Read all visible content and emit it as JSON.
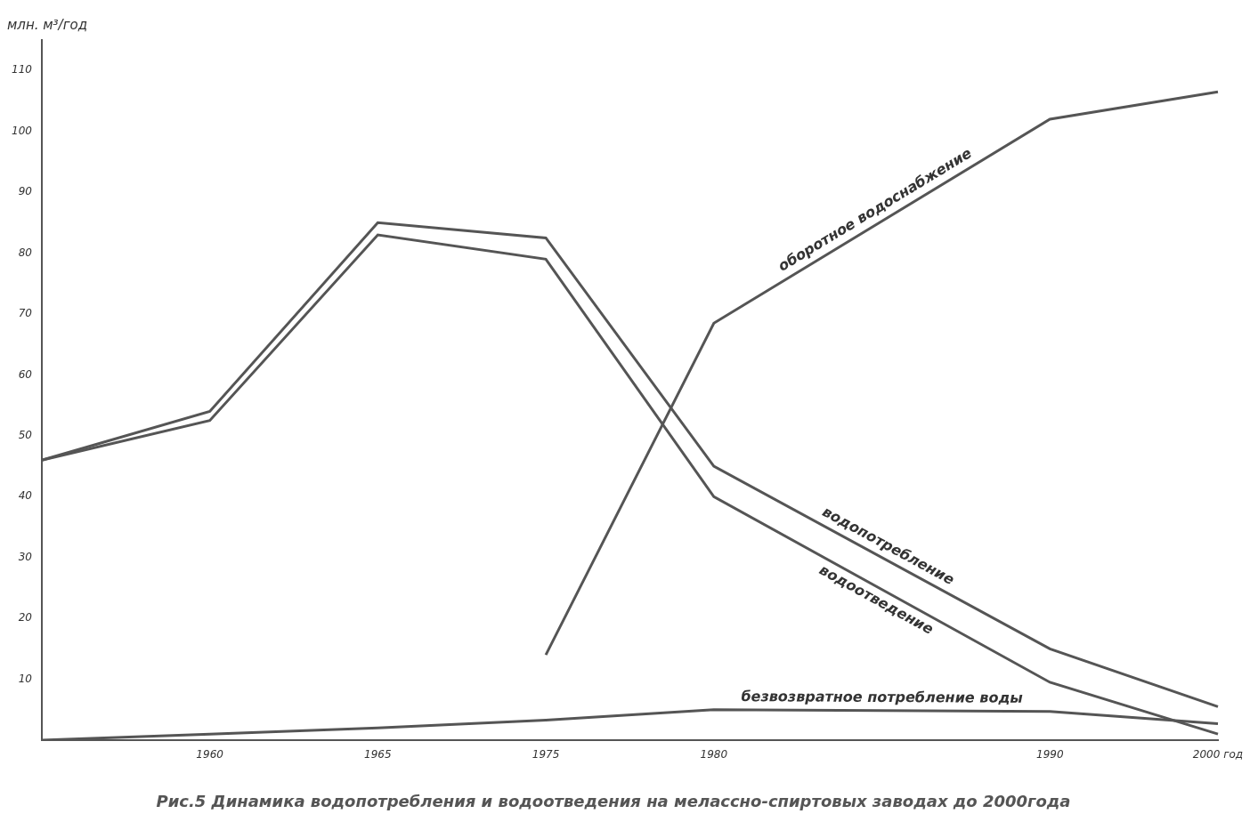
{
  "chart_data": {
    "type": "line",
    "title": "Рис.5 Динамика водопотребления и водоотведения на мелассно-спиртовых заводах до 2000года",
    "y_label": "млн. м³/год",
    "categories": [
      null,
      "1960",
      "1965",
      "1975",
      "1980",
      null,
      "1990",
      "2000 год"
    ],
    "series": [
      {
        "name": "водопотребление",
        "color": "#555555",
        "values": [
          46,
          54,
          85,
          82.5,
          45,
          null,
          15,
          5.5
        ]
      },
      {
        "name": "водоотведение",
        "color": "#555555",
        "values": [
          46,
          52.5,
          83,
          79,
          40,
          null,
          9.5,
          1
        ]
      },
      {
        "name": "оборотное водоснабжение",
        "color": "#555555",
        "values": [
          null,
          null,
          null,
          14,
          68.5,
          null,
          102,
          106.5
        ]
      },
      {
        "name": "безвозвратное потребление воды",
        "color": "#555555",
        "values": [
          0,
          1,
          2,
          3.3,
          5,
          null,
          4.7,
          2.7
        ]
      }
    ],
    "ylim": [
      0,
      115
    ],
    "yticks": [
      10,
      20,
      30,
      40,
      50,
      60,
      70,
      80,
      90,
      100,
      110
    ],
    "grid": false
  }
}
